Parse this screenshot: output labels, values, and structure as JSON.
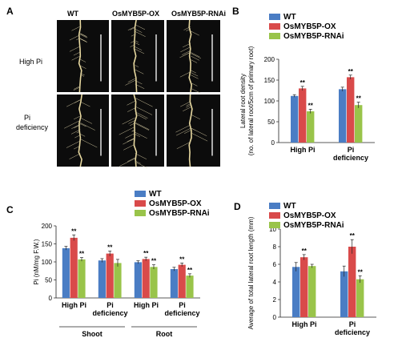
{
  "colors": {
    "WT": "#4a7dc4",
    "OX": "#d94a4a",
    "RNAi": "#99c44a"
  },
  "panel_a": {
    "letter": "A",
    "columns": [
      "WT",
      "OsMYB5P-OX",
      "OsMYB5P-RNAi"
    ],
    "rows": [
      "High Pi",
      "Pi deficiency"
    ]
  },
  "chart_data": [
    {
      "id": "B",
      "type": "bar",
      "letter": "B",
      "ylabel": "Lateral root density (no. of lateral root/5cm of primary root)",
      "ylabel_lines": [
        "Lateral root density",
        "(no. of lateral root/5cm of primary root)"
      ],
      "ylim": [
        0,
        200
      ],
      "yticks": [
        0,
        50,
        100,
        150,
        200
      ],
      "categories": [
        "High Pi",
        "Pi deficiency"
      ],
      "category_lines": [
        [
          "High Pi"
        ],
        [
          "Pi",
          "deficiency"
        ]
      ],
      "series": [
        {
          "name": "WT",
          "values": [
            112,
            128
          ],
          "errors": [
            3,
            5
          ],
          "marks": [
            "",
            ""
          ]
        },
        {
          "name": "OsMYB5P-OX",
          "values": [
            130,
            157
          ],
          "errors": [
            5,
            5
          ],
          "marks": [
            "**",
            "**"
          ]
        },
        {
          "name": "OsMYB5P-RNAi",
          "values": [
            75,
            90
          ],
          "errors": [
            5,
            7
          ],
          "marks": [
            "**",
            "**"
          ]
        }
      ]
    },
    {
      "id": "C",
      "type": "bar",
      "letter": "C",
      "ylabel": "Pi (nM/mg F.W.)",
      "ylim": [
        0,
        200
      ],
      "yticks": [
        0,
        50,
        100,
        150,
        200
      ],
      "categories": [
        "High Pi",
        "Pi deficiency",
        "High Pi",
        "Pi deficiency"
      ],
      "category_lines": [
        [
          "High Pi"
        ],
        [
          "Pi",
          "deficiency"
        ],
        [
          "High Pi"
        ],
        [
          "Pi",
          "deficiency"
        ]
      ],
      "groups": [
        {
          "label": "Shoot",
          "span": [
            0,
            1
          ]
        },
        {
          "label": "Root",
          "span": [
            2,
            3
          ]
        }
      ],
      "series": [
        {
          "name": "WT",
          "values": [
            138,
            104,
            99,
            80
          ],
          "errors": [
            5,
            5,
            4,
            5
          ],
          "marks": [
            "",
            "",
            "",
            ""
          ]
        },
        {
          "name": "OsMYB5P-OX",
          "values": [
            167,
            123,
            108,
            92
          ],
          "errors": [
            8,
            7,
            5,
            5
          ],
          "marks": [
            "**",
            "**",
            "**",
            "**"
          ]
        },
        {
          "name": "OsMYB5P-RNAi",
          "values": [
            107,
            97,
            86,
            62
          ],
          "errors": [
            5,
            10,
            6,
            5
          ],
          "marks": [
            "**",
            "",
            "**",
            "**"
          ]
        }
      ]
    },
    {
      "id": "D",
      "type": "bar",
      "letter": "D",
      "ylabel": "Average of total lateral root length (mm)",
      "ylim": [
        0,
        10
      ],
      "yticks": [
        0,
        2,
        4,
        6,
        8,
        10
      ],
      "categories": [
        "High Pi",
        "Pi deficiency"
      ],
      "category_lines": [
        [
          "High Pi"
        ],
        [
          "Pi",
          "deficiency"
        ]
      ],
      "series": [
        {
          "name": "WT",
          "values": [
            5.7,
            5.2
          ],
          "errors": [
            0.5,
            0.6
          ],
          "marks": [
            "",
            ""
          ]
        },
        {
          "name": "OsMYB5P-OX",
          "values": [
            6.8,
            8.0
          ],
          "errors": [
            0.3,
            0.8
          ],
          "marks": [
            "**",
            "**"
          ]
        },
        {
          "name": "OsMYB5P-RNAi",
          "values": [
            5.8,
            4.3
          ],
          "errors": [
            0.2,
            0.4
          ],
          "marks": [
            "",
            "**"
          ]
        }
      ]
    }
  ]
}
